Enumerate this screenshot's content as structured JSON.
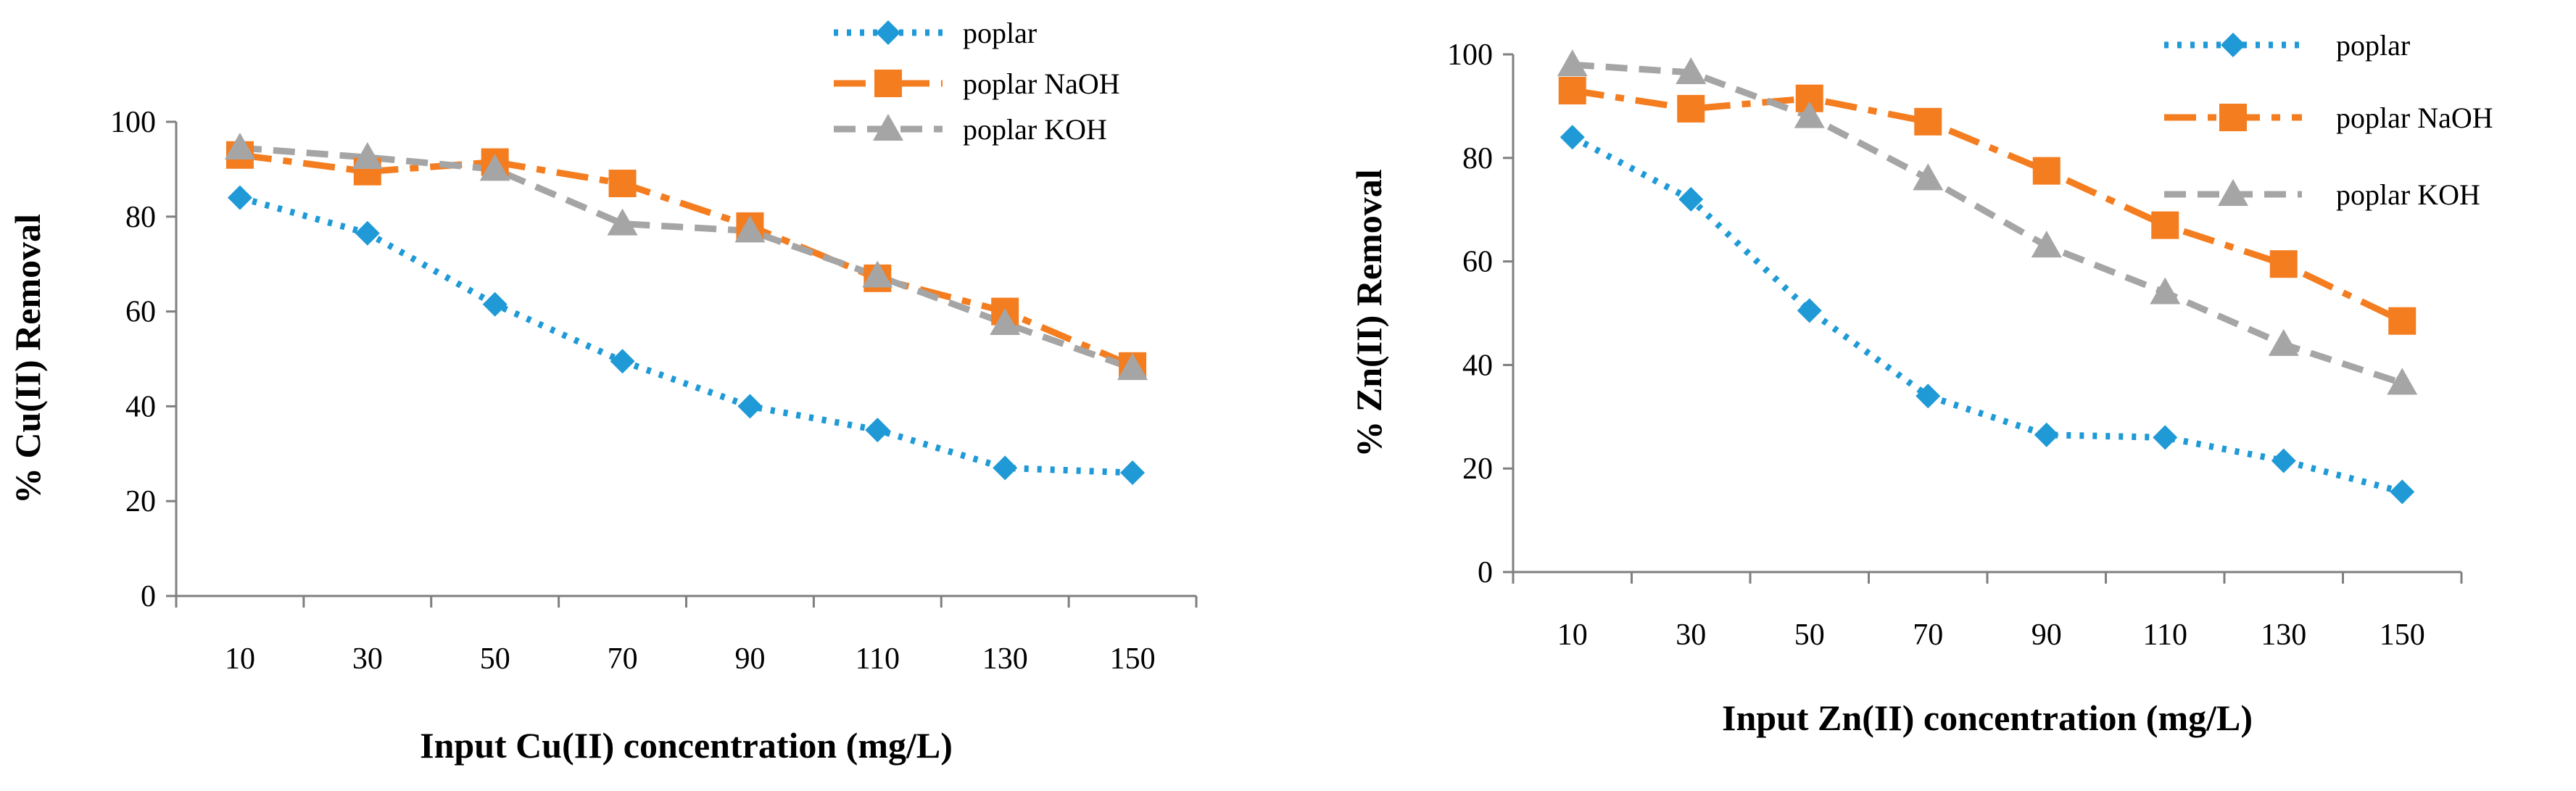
{
  "chart_data": [
    {
      "type": "line",
      "title": "",
      "xlabel": "Input Cu(II) concentration (mg/L)",
      "ylabel": "% Cu(II) Removal",
      "categories": [
        "10",
        "30",
        "50",
        "70",
        "90",
        "110",
        "130",
        "150"
      ],
      "ylim": [
        0,
        100
      ],
      "yticks": [
        "0",
        "20",
        "40",
        "60",
        "80",
        "100"
      ],
      "grid": false,
      "legend_position": "top-right",
      "series": [
        {
          "name": "poplar",
          "color": "#1f9ad6",
          "marker": "diamond",
          "line": "dotted",
          "values": [
            84,
            76.5,
            61.5,
            49.5,
            40,
            35,
            27,
            26
          ]
        },
        {
          "name": "poplar NaOH",
          "color": "#f47d20",
          "marker": "square",
          "line": "dash-dot",
          "values": [
            93,
            89.5,
            91.5,
            87,
            78,
            67,
            60,
            48.5
          ]
        },
        {
          "name": "poplar KOH",
          "color": "#a5a5a5",
          "marker": "triangle",
          "line": "dashed",
          "values": [
            94.5,
            92.5,
            90,
            78.5,
            77,
            67.5,
            57.5,
            48
          ]
        }
      ]
    },
    {
      "type": "line",
      "title": "",
      "xlabel": "Input Zn(II) concentration (mg/L)",
      "ylabel": "% Zn(II) Removal",
      "categories": [
        "10",
        "30",
        "50",
        "70",
        "90",
        "110",
        "130",
        "150"
      ],
      "ylim": [
        0,
        100
      ],
      "yticks": [
        "0",
        "20",
        "40",
        "60",
        "80",
        "100"
      ],
      "grid": false,
      "legend_position": "top-right",
      "series": [
        {
          "name": "poplar",
          "color": "#1f9ad6",
          "marker": "diamond",
          "line": "dotted",
          "values": [
            84,
            72,
            50.5,
            34,
            26.5,
            26,
            21.5,
            15.5
          ]
        },
        {
          "name": "poplar NaOH",
          "color": "#f47d20",
          "marker": "square",
          "line": "dash-dot",
          "values": [
            93,
            89.5,
            91.5,
            87,
            77.5,
            67,
            59.5,
            48.5
          ]
        },
        {
          "name": "poplar KOH",
          "color": "#a5a5a5",
          "marker": "triangle",
          "line": "dashed",
          "values": [
            98,
            96.5,
            88,
            76,
            63,
            54,
            44,
            36.5
          ]
        }
      ]
    }
  ]
}
